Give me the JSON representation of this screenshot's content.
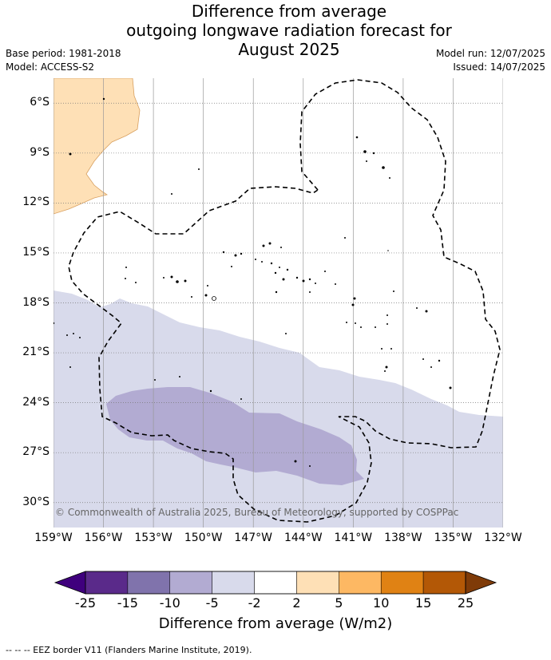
{
  "title_lines": [
    "Difference from average",
    "outgoing longwave radiation forecast for",
    "August 2025"
  ],
  "base_period": "Base period: 1981-2018",
  "model": "Model: ACCESS-S2",
  "model_run": "Model run: 12/07/2025",
  "issued": "Issued: 14/07/2025",
  "map": {
    "lon_range": [
      -159,
      -132
    ],
    "lat_range": [
      -31.5,
      -4.5
    ],
    "lat_ticks": [
      {
        "value": -6,
        "label": "6°S"
      },
      {
        "value": -9,
        "label": "9°S"
      },
      {
        "value": -12,
        "label": "12°S"
      },
      {
        "value": -15,
        "label": "15°S"
      },
      {
        "value": -18,
        "label": "18°S"
      },
      {
        "value": -21,
        "label": "21°S"
      },
      {
        "value": -24,
        "label": "24°S"
      },
      {
        "value": -27,
        "label": "27°S"
      },
      {
        "value": -30,
        "label": "30°S"
      }
    ],
    "lon_ticks": [
      {
        "value": -159,
        "label": "159°W"
      },
      {
        "value": -156,
        "label": "156°W"
      },
      {
        "value": -153,
        "label": "153°W"
      },
      {
        "value": -150,
        "label": "150°W"
      },
      {
        "value": -147,
        "label": "147°W"
      },
      {
        "value": -144,
        "label": "144°W"
      },
      {
        "value": -141,
        "label": "141°W"
      },
      {
        "value": -138,
        "label": "138°W"
      },
      {
        "value": -135,
        "label": "135°W"
      },
      {
        "value": -132,
        "label": "132°W"
      }
    ],
    "gridlines": true,
    "fill_colors": {
      "lt_-25": "#3f007d",
      "-25_-15": "#5a2a8a",
      "-15_-10": "#8073ac",
      "-10_-5": "#b2abd2",
      "-5_-2": "#d8daeb",
      "-2_2": "#ffffff",
      "2_5": "#fee0b6",
      "5_10": "#fdb863",
      "10_15": "#e08214",
      "15_25": "#b35806",
      "gt_25": "#7f3b08"
    },
    "copyright": "© Commonwealth of Australia 2025, Bureau of Meteorology, supported by COSPPac"
  },
  "colorbar": {
    "bins": [
      {
        "from": -25,
        "to": -15,
        "color": "#5a2a8a"
      },
      {
        "from": -15,
        "to": -10,
        "color": "#8073ac"
      },
      {
        "from": -10,
        "to": -5,
        "color": "#b2abd2"
      },
      {
        "from": -5,
        "to": -2,
        "color": "#d8daeb"
      },
      {
        "from": -2,
        "to": 2,
        "color": "#ffffff"
      },
      {
        "from": 2,
        "to": 5,
        "color": "#fee0b6"
      },
      {
        "from": 5,
        "to": 10,
        "color": "#fdb863"
      },
      {
        "from": 10,
        "to": 15,
        "color": "#e08214"
      },
      {
        "from": 15,
        "to": 25,
        "color": "#b35806"
      }
    ],
    "under_color": "#3f007d",
    "over_color": "#7f3b08",
    "tick_labels": [
      "-25",
      "-15",
      "-10",
      "-5",
      "-2",
      "2",
      "5",
      "10",
      "15",
      "25"
    ],
    "label": "Difference from average (W/m2)"
  },
  "footer": "-- -- -- EEZ border V11 (Flanders Marine Institute, 2019)."
}
